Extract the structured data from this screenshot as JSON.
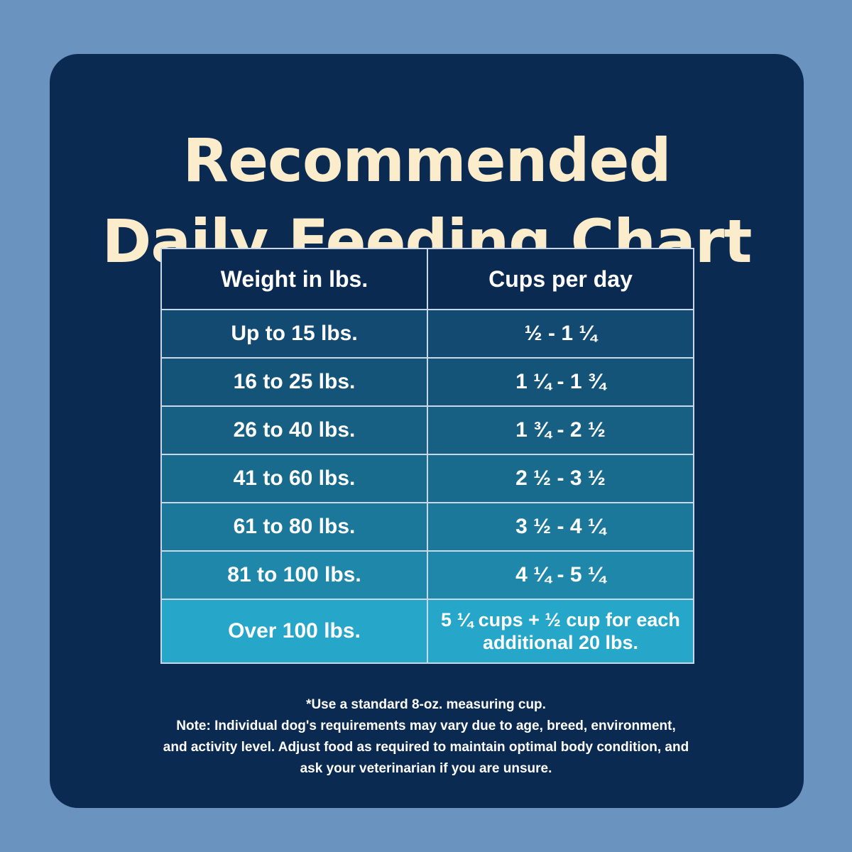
{
  "title": {
    "line1": "Recommended",
    "line2": "Daily Feeding Chart"
  },
  "table": {
    "headers": [
      "Weight in lbs.",
      "Cups per day"
    ],
    "rows": [
      {
        "weight": "Up to 15 lbs.",
        "cups": "½ - 1 ¼"
      },
      {
        "weight": "16 to 25 lbs.",
        "cups": "1 ¼ - 1 ¾"
      },
      {
        "weight": "26 to 40 lbs.",
        "cups": "1 ¾ - 2 ½"
      },
      {
        "weight": "41 to 60 lbs.",
        "cups": "2 ½ - 3 ½"
      },
      {
        "weight": "61 to 80 lbs.",
        "cups": "3 ½ - 4 ¼"
      },
      {
        "weight": "81 to 100 lbs.",
        "cups": "4 ¼ - 5 ¼"
      },
      {
        "weight": "Over 100 lbs.",
        "cups_line1": "5 ¼ cups  + ½ cup for each",
        "cups_line2": "additional 20 lbs."
      }
    ]
  },
  "notes": {
    "line1": "*Use a standard 8-oz. measuring cup.",
    "line2": "Note: Individual dog's requirements may vary due to age, breed, environment,",
    "line3": "and activity level. Adjust food as required to maintain optimal body condition, and",
    "line4": "ask your veterinarian if you are unsure."
  },
  "colors": {
    "background": "#6a93c0",
    "panel": "#0a2a52",
    "title": "#fbeccb",
    "row_gradient": [
      "#134a72",
      "#155479",
      "#175f83",
      "#196b8e",
      "#1b789b",
      "#1e87aa",
      "#26a6c8"
    ]
  }
}
